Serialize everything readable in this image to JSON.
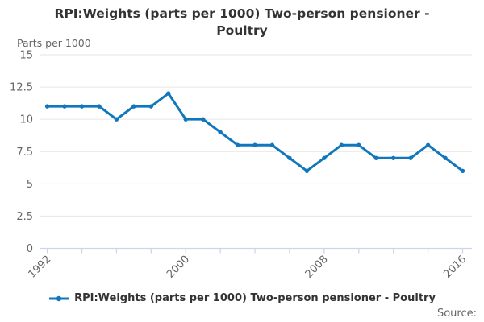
{
  "title": "RPI:Weights (parts per 1000) Two-person pensioner - Poultry",
  "y_axis": {
    "unit_label": "Parts per 1000"
  },
  "legend": {
    "label": "RPI:Weights (parts per 1000) Two-person pensioner - Poultry"
  },
  "source": {
    "label": "Source:"
  },
  "colors": {
    "line": "#1077bd",
    "grid": "#e6e6e6",
    "axis": "#ccd6eb",
    "title_text": "#333333",
    "axis_text": "#666666"
  },
  "chart_data": {
    "type": "line",
    "title": "RPI:Weights (parts per 1000) Two-person pensioner - Poultry",
    "ylabel": "Parts per 1000",
    "x": [
      1992,
      1993,
      1994,
      1995,
      1996,
      1997,
      1998,
      1999,
      2000,
      2001,
      2002,
      2003,
      2004,
      2005,
      2006,
      2007,
      2008,
      2009,
      2010,
      2011,
      2012,
      2013,
      2014,
      2015,
      2016
    ],
    "series": [
      {
        "name": "RPI:Weights (parts per 1000) Two-person pensioner - Poultry",
        "values": [
          11,
          11,
          11,
          11,
          10,
          11,
          11,
          12,
          10,
          10,
          9,
          8,
          8,
          8,
          7,
          6,
          7,
          8,
          8,
          7,
          7,
          7,
          8,
          7,
          6
        ]
      }
    ],
    "ylim": [
      0,
      15
    ],
    "yticks": [
      0,
      2.5,
      5,
      7.5,
      10,
      12.5,
      15
    ],
    "xticks_labeled": [
      1992,
      2000,
      2008,
      2016
    ],
    "xtick_interval": 2,
    "grid": true,
    "legend_position": "bottom"
  }
}
